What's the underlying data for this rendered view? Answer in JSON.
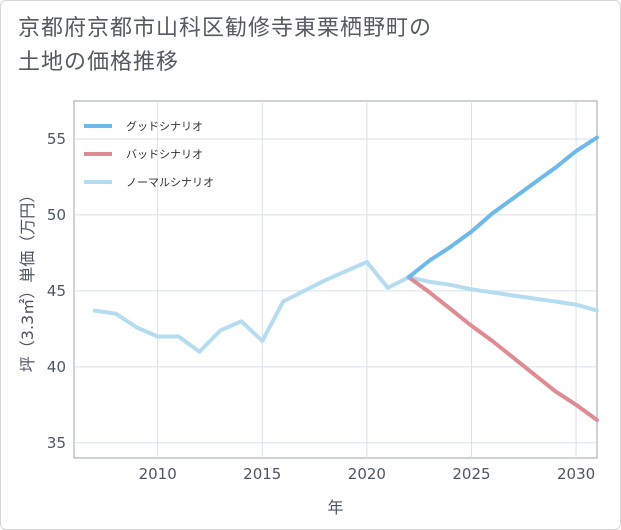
{
  "title_line1": "京都府京都市山科区勧修寺東栗栖野町の",
  "title_line2": "土地の価格推移",
  "chart_data": {
    "type": "line",
    "xlabel": "年",
    "ylabel": "坪（3.3㎡）単価（万円）",
    "xlim": [
      2006,
      2031
    ],
    "ylim": [
      34,
      57.5
    ],
    "xticks": [
      2010,
      2015,
      2020,
      2025,
      2030
    ],
    "yticks": [
      35,
      40,
      45,
      50,
      55
    ],
    "grid": true,
    "legend_position": "top-left",
    "series": [
      {
        "name": "グッドシナリオ",
        "color": "#6cb9ec",
        "x": [
          2022,
          2023,
          2024,
          2025,
          2026,
          2027,
          2028,
          2029,
          2030,
          2031
        ],
        "values": [
          45.9,
          47.0,
          47.9,
          48.9,
          50.1,
          51.1,
          52.1,
          53.1,
          54.2,
          55.1
        ]
      },
      {
        "name": "バッドシナリオ",
        "color": "#e08a93",
        "x": [
          2022,
          2023,
          2024,
          2025,
          2026,
          2027,
          2028,
          2029,
          2030,
          2031
        ],
        "values": [
          45.9,
          44.9,
          43.8,
          42.7,
          41.7,
          40.6,
          39.5,
          38.4,
          37.5,
          36.5
        ]
      },
      {
        "name": "ノーマルシナリオ",
        "color": "#b6dcef",
        "x": [
          2007,
          2008,
          2009,
          2010,
          2011,
          2012,
          2013,
          2014,
          2015,
          2016,
          2017,
          2018,
          2019,
          2020,
          2021,
          2022,
          2023,
          2024,
          2025,
          2026,
          2027,
          2028,
          2029,
          2030,
          2031
        ],
        "values": [
          43.7,
          43.5,
          42.6,
          42.0,
          42.0,
          41.0,
          42.4,
          43.0,
          41.7,
          44.3,
          45.0,
          45.7,
          46.3,
          46.9,
          45.2,
          45.9,
          45.6,
          45.4,
          45.1,
          44.9,
          44.7,
          44.5,
          44.3,
          44.1,
          43.7
        ]
      }
    ]
  }
}
